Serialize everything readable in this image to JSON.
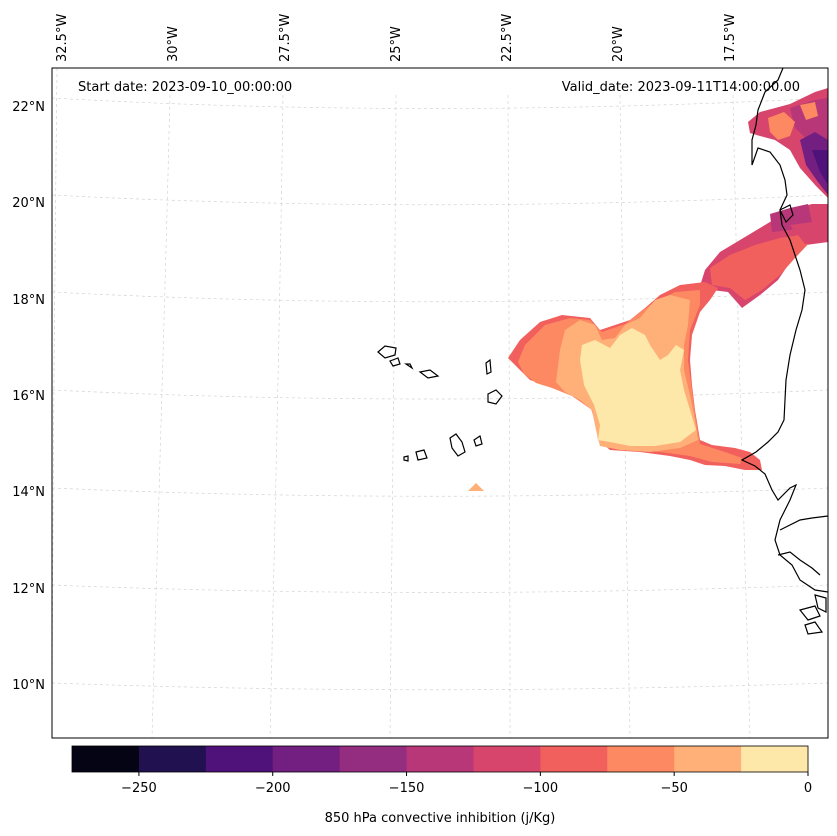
{
  "map": {
    "start_date": "Start date: 2023-09-10_00:00:00",
    "valid_date": "Valid_date: 2023-09-11T14:00:00.00",
    "lon_labels": [
      "32.5°W",
      "30°W",
      "27.5°W",
      "25°W",
      "22.5°W",
      "20°W",
      "17.5°W"
    ],
    "lat_labels": [
      "22°N",
      "20°N",
      "18°N",
      "16°N",
      "14°N",
      "12°N",
      "10°N"
    ]
  },
  "colorbar": {
    "label": "850 hPa convective inhibition (j/Kg)",
    "ticks": [
      "−250",
      "−200",
      "−150",
      "−100",
      "−50",
      "0"
    ],
    "colors": [
      "#050414",
      "#221150",
      "#4f127b",
      "#721f81",
      "#942c80",
      "#b73779",
      "#d8456c",
      "#f1605d",
      "#fc8961",
      "#feb078",
      "#fde7a9"
    ]
  }
}
